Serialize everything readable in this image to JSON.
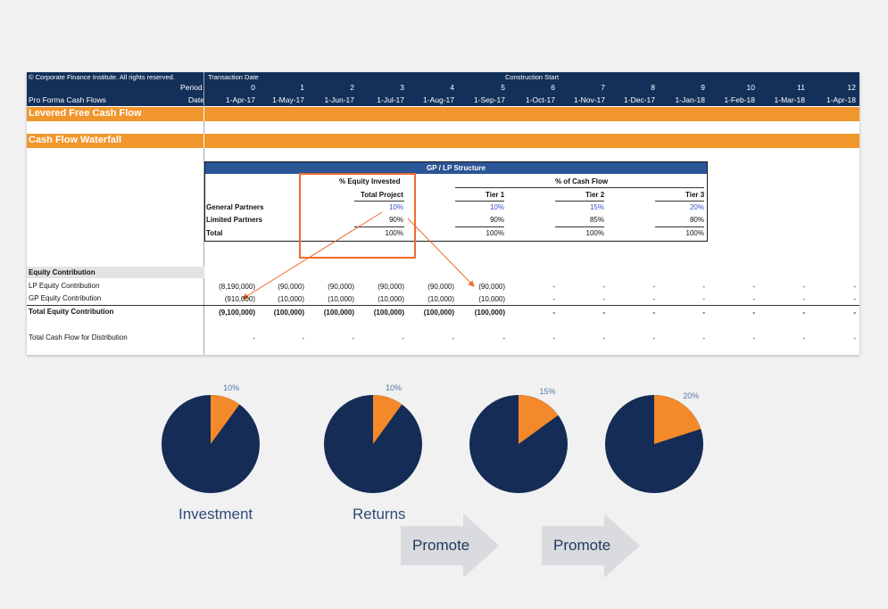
{
  "sheet": {
    "copyright": "© Corporate Finance Institute. All rights reserved.",
    "period_label": "Period",
    "pro_forma_label": "Pro Forma Cash Flows",
    "date_label": "Date",
    "transaction_date": "Transaction Date",
    "construction_start": "Construction Start",
    "periods": [
      "0",
      "1",
      "2",
      "3",
      "4",
      "5",
      "6",
      "7",
      "8",
      "9",
      "10",
      "11",
      "12"
    ],
    "dates": [
      "1-Apr-17",
      "1-May-17",
      "1-Jun-17",
      "1-Jul-17",
      "1-Aug-17",
      "1-Sep-17",
      "1-Oct-17",
      "1-Nov-17",
      "1-Dec-17",
      "1-Jan-18",
      "1-Feb-18",
      "1-Mar-18",
      "1-Apr-18"
    ],
    "band1": "Levered Free Cash Flow",
    "band2": "Cash Flow Waterfall",
    "structure": {
      "title": "GP / LP Structure",
      "equity_invested": "% Equity Invested",
      "total_project": "Total Project",
      "cash_flow": "% of Cash Flow",
      "tiers": [
        "Tier 1",
        "Tier 2",
        "Tier 3"
      ],
      "rows": [
        {
          "label": "General Partners",
          "total": "10%",
          "tiers": [
            "10%",
            "15%",
            "20%"
          ]
        },
        {
          "label": "Limited Partners",
          "total": "90%",
          "tiers": [
            "90%",
            "85%",
            "80%"
          ]
        },
        {
          "label": "Total",
          "total": "100%",
          "tiers": [
            "100%",
            "100%",
            "100%"
          ]
        }
      ]
    },
    "equity": {
      "heading": "Equity Contribution",
      "lp_label": "LP Equity Contribution",
      "gp_label": "GP Equity Contribution",
      "total_label": "Total Equity Contribution",
      "distribution_label": "Total Cash Flow for Distribution",
      "lp": [
        "(8,190,000)",
        "(90,000)",
        "(90,000)",
        "(90,000)",
        "(90,000)",
        "(90,000)",
        "-",
        "-",
        "-",
        "-",
        "-",
        "-",
        "-"
      ],
      "gp": [
        "(910,000)",
        "(10,000)",
        "(10,000)",
        "(10,000)",
        "(10,000)",
        "(10,000)",
        "-",
        "-",
        "-",
        "-",
        "-",
        "-",
        "-"
      ],
      "total": [
        "(9,100,000)",
        "(100,000)",
        "(100,000)",
        "(100,000)",
        "(100,000)",
        "(100,000)",
        "-",
        "-",
        "-",
        "-",
        "-",
        "-",
        "-"
      ],
      "distribution": [
        "-",
        "-",
        "-",
        "-",
        "-",
        "-",
        "-",
        "-",
        "-",
        "-",
        "-",
        "-",
        "-"
      ]
    }
  },
  "pies": [
    {
      "pct_label": "10%",
      "fraction": 0.1
    },
    {
      "pct_label": "10%",
      "fraction": 0.1
    },
    {
      "pct_label": "15%",
      "fraction": 0.15
    },
    {
      "pct_label": "20%",
      "fraction": 0.2
    }
  ],
  "labels": {
    "investment": "Investment",
    "returns": "Returns",
    "promote1": "Promote",
    "promote2": "Promote"
  },
  "colors": {
    "navy": "#13305a",
    "orange": "#f0962c",
    "pie_navy": "#142c56",
    "pie_orange": "#f3892a",
    "highlight": "#f06a2c",
    "arrow": "#d9dbde"
  }
}
